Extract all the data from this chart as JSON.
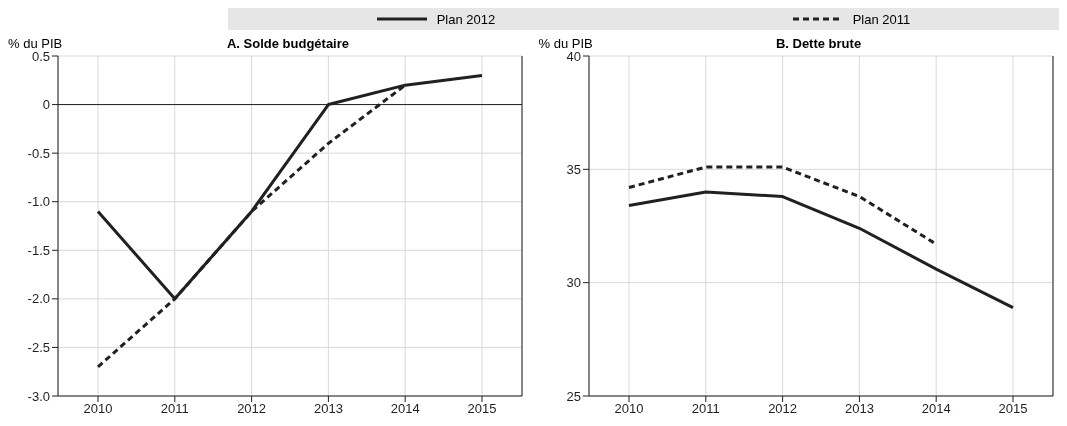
{
  "chart_data": [
    {
      "type": "line",
      "title": "A. Solde budgétaire",
      "ylabel": "% du PIB",
      "categories": [
        "2010",
        "2011",
        "2012",
        "2013",
        "2014",
        "2015"
      ],
      "series": [
        {
          "name": "Plan 2012",
          "color": "#231f20",
          "line_style": "solid",
          "values": [
            -1.1,
            -2.0,
            -1.1,
            0.0,
            0.2,
            0.3
          ]
        },
        {
          "name": "Plan 2011",
          "color": "#231f20",
          "line_style": "dashed",
          "values": [
            -2.7,
            -2.0,
            -1.1,
            -0.4,
            0.2,
            null
          ]
        }
      ],
      "ylim": [
        -3,
        0.5
      ],
      "yticks": [
        {
          "value": -3,
          "label": "-3.0"
        },
        {
          "value": -2.5,
          "label": "-2.5"
        },
        {
          "value": -2,
          "label": "-2.0"
        },
        {
          "value": -1.5,
          "label": "-1.5"
        },
        {
          "value": -1,
          "label": "-1.0"
        },
        {
          "value": -0.5,
          "label": "-0.5"
        },
        0,
        0.5
      ],
      "ref_lines": [
        {
          "axis": "y",
          "value": 0,
          "color": "#231f20"
        }
      ],
      "grid": true,
      "legend": "top",
      "marker": "none"
    },
    {
      "type": "line",
      "title": "B. Dette brute",
      "ylabel": "% du PIB",
      "categories": [
        "2010",
        "2011",
        "2012",
        "2013",
        "2014",
        "2015"
      ],
      "series": [
        {
          "name": "Plan 2012",
          "color": "#231f20",
          "line_style": "solid",
          "values": [
            33.4,
            34.0,
            33.8,
            32.4,
            30.6,
            28.9
          ]
        },
        {
          "name": "Plan 2011",
          "color": "#231f20",
          "line_style": "dashed",
          "values": [
            34.2,
            35.1,
            35.1,
            33.8,
            31.7,
            null
          ]
        }
      ],
      "ylim": [
        25,
        40
      ],
      "yticks": [
        25,
        30,
        35,
        40
      ],
      "grid": true,
      "legend": "top",
      "marker": "none"
    }
  ]
}
